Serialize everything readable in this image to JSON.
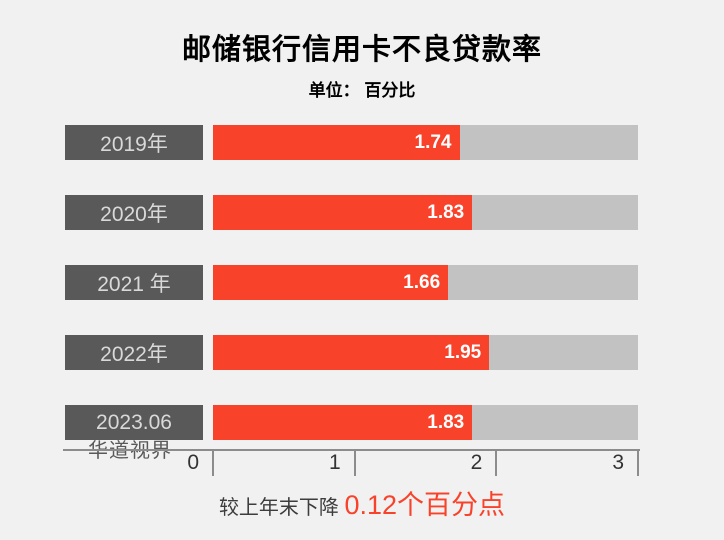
{
  "chart_data": {
    "type": "bar",
    "orientation": "horizontal",
    "title": "邮储银行信用卡不良贷款率",
    "unit_label": "单位： 百分比",
    "categories": [
      "2019年",
      "2020年",
      "2021 年",
      "2022年",
      "2023.06"
    ],
    "values": [
      1.74,
      1.83,
      1.66,
      1.95,
      1.83
    ],
    "xlabel": "",
    "ylabel": "",
    "xlim": [
      0,
      3
    ],
    "x_ticks": [
      "0",
      "1",
      "2",
      "3"
    ],
    "grid": false,
    "legend": false
  },
  "watermark": "华道视界",
  "footnote": {
    "prefix": "较上年末下降 ",
    "highlight": "0.12个百分点"
  },
  "colors": {
    "background": "#f1f1f1",
    "bar_red": "#f9422a",
    "track_gray": "#c2c2c2",
    "label_box": "#595959",
    "label_text": "#d9d9d9",
    "value_text": "#ffffff",
    "axis": "#8c8c8c",
    "tick_text": "#333333",
    "note_text": "#3d3d3d",
    "watermark_text": "#595959",
    "title_text": "#000000"
  }
}
